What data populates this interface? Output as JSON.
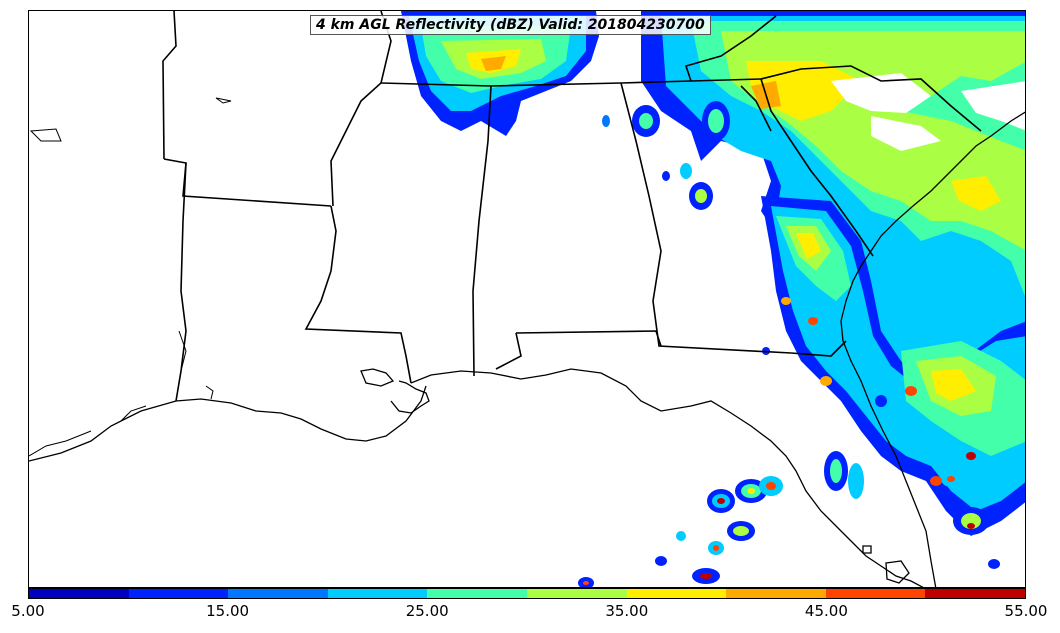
{
  "map": {
    "title": "4 km AGL Reflectivity (dBZ) Valid: 201804230700",
    "region": "Southeastern United States",
    "variable_units": "dBZ"
  },
  "colorbar": {
    "min": 5,
    "max": 55,
    "interval": 5,
    "colors": [
      "#0000c0",
      "#0022ff",
      "#0077ff",
      "#00ccff",
      "#44ffaa",
      "#aaff44",
      "#ffee00",
      "#ffaa00",
      "#ff4400",
      "#c00000"
    ],
    "tick_labels": [
      "5.00",
      "15.00",
      "25.00",
      "35.00",
      "45.00",
      "55.00"
    ]
  },
  "legend": {
    "colors": {
      "level_5": "#0000c0",
      "level_10": "#0022ff",
      "level_15": "#0077ff",
      "level_20": "#00ccff",
      "level_25": "#44ffaa",
      "level_30": "#aaff44",
      "level_35": "#ffee00",
      "level_40": "#ffaa00",
      "level_45": "#ff4400",
      "level_50": "#c00000"
    }
  }
}
